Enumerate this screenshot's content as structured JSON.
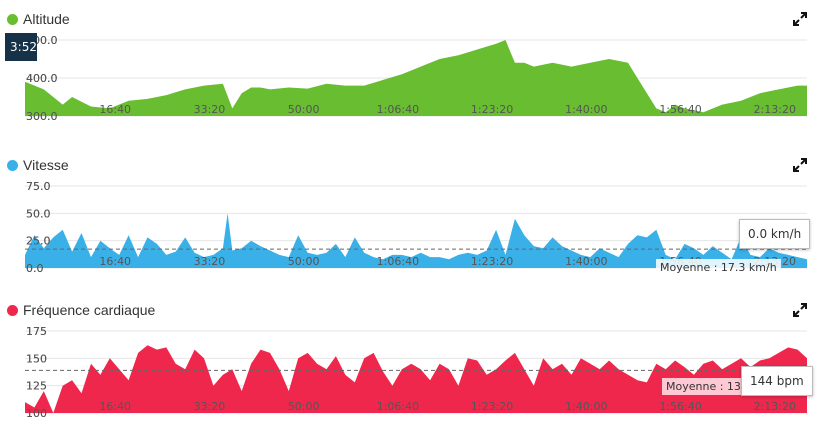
{
  "chart_data": [
    {
      "type": "area",
      "title": "Altitude",
      "color": "#69bd31",
      "ylim": [
        300,
        500
      ],
      "yticks": [
        "500.0",
        "400.0",
        "300.0"
      ],
      "ytick_values": [
        500,
        400,
        300
      ],
      "xticks": [
        "16:40",
        "33:20",
        "50:00",
        "1:06:40",
        "1:23:20",
        "1:40:00",
        "1:56:40",
        "2:13:20"
      ],
      "xtick_values": [
        1000,
        2000,
        3000,
        4000,
        5000,
        6000,
        7000,
        8000
      ],
      "xlim": [
        0,
        8300
      ],
      "x": [
        0,
        200,
        400,
        500,
        700,
        900,
        1100,
        1300,
        1500,
        1700,
        1900,
        2100,
        2200,
        2300,
        2400,
        2500,
        2600,
        2800,
        3000,
        3200,
        3400,
        3600,
        3800,
        4000,
        4200,
        4400,
        4600,
        4800,
        5000,
        5100,
        5200,
        5300,
        5400,
        5600,
        5800,
        6000,
        6200,
        6400,
        6500,
        6700,
        6800,
        6900,
        7000,
        7200,
        7400,
        7600,
        7800,
        8000,
        8200,
        8300
      ],
      "values": [
        390,
        370,
        330,
        350,
        325,
        320,
        340,
        345,
        355,
        370,
        380,
        385,
        320,
        360,
        375,
        375,
        370,
        375,
        372,
        385,
        380,
        380,
        395,
        410,
        430,
        450,
        460,
        475,
        490,
        500,
        440,
        440,
        430,
        440,
        430,
        440,
        450,
        440,
        400,
        320,
        310,
        330,
        320,
        310,
        330,
        340,
        360,
        370,
        380,
        380
      ],
      "time_badge": "3:52"
    },
    {
      "type": "area",
      "title": "Vitesse",
      "color": "#3ab0e8",
      "ylim": [
        0,
        75
      ],
      "yticks": [
        "75.0",
        "50.0",
        "25.0",
        "0.0"
      ],
      "ytick_values": [
        75,
        50,
        25,
        0
      ],
      "xticks": [
        "16:40",
        "33:20",
        "50:00",
        "1:06:40",
        "1:23:20",
        "1:40:00",
        "1:56:40",
        "2:13:20"
      ],
      "xtick_values": [
        1000,
        2000,
        3000,
        4000,
        5000,
        6000,
        7000,
        8000
      ],
      "xlim": [
        0,
        8300
      ],
      "x": [
        0,
        100,
        200,
        300,
        400,
        500,
        600,
        700,
        800,
        900,
        1000,
        1100,
        1200,
        1300,
        1400,
        1500,
        1600,
        1700,
        1800,
        1900,
        2000,
        2100,
        2150,
        2200,
        2300,
        2400,
        2500,
        2600,
        2700,
        2800,
        2900,
        3000,
        3100,
        3200,
        3300,
        3400,
        3500,
        3600,
        3700,
        3800,
        3900,
        4000,
        4100,
        4200,
        4300,
        4400,
        4500,
        4600,
        4700,
        4800,
        4900,
        5000,
        5100,
        5200,
        5300,
        5400,
        5500,
        5600,
        5700,
        5800,
        5900,
        6000,
        6100,
        6200,
        6300,
        6400,
        6500,
        6600,
        6700,
        6800,
        6900,
        7000,
        7100,
        7200,
        7300,
        7400,
        7500,
        7600,
        7700,
        7800,
        7900,
        8000,
        8100,
        8200,
        8300
      ],
      "values": [
        12,
        30,
        18,
        28,
        35,
        15,
        32,
        10,
        25,
        18,
        12,
        30,
        10,
        28,
        22,
        12,
        15,
        28,
        14,
        10,
        12,
        18,
        50,
        16,
        18,
        25,
        20,
        16,
        12,
        10,
        30,
        14,
        12,
        14,
        22,
        10,
        28,
        14,
        10,
        8,
        12,
        12,
        10,
        14,
        10,
        10,
        8,
        12,
        14,
        12,
        16,
        35,
        12,
        45,
        30,
        20,
        18,
        28,
        20,
        16,
        12,
        10,
        18,
        14,
        10,
        22,
        30,
        28,
        35,
        12,
        8,
        22,
        18,
        12,
        20,
        14,
        8,
        28,
        12,
        10,
        18,
        14,
        12,
        10,
        8
      ],
      "average_value": 17.3,
      "average_label": "Moyenne : 17.3 km/h",
      "tooltip": "0.0 km/h"
    },
    {
      "type": "area",
      "title": "Fréquence cardiaque",
      "color": "#f0274d",
      "ylim": [
        100,
        175
      ],
      "yticks": [
        "175",
        "150",
        "125",
        "100"
      ],
      "ytick_values": [
        175,
        150,
        125,
        100
      ],
      "xticks": [
        "16:40",
        "33:20",
        "50:00",
        "1:06:40",
        "1:23:20",
        "1:40:00",
        "1:56:40",
        "2:13:20"
      ],
      "xtick_values": [
        1000,
        2000,
        3000,
        4000,
        5000,
        6000,
        7000,
        8000
      ],
      "xlim": [
        0,
        8300
      ],
      "x": [
        0,
        100,
        200,
        300,
        400,
        500,
        600,
        700,
        800,
        900,
        1000,
        1100,
        1200,
        1300,
        1400,
        1500,
        1600,
        1700,
        1800,
        1900,
        2000,
        2100,
        2200,
        2300,
        2400,
        2500,
        2600,
        2700,
        2800,
        2900,
        3000,
        3100,
        3200,
        3300,
        3400,
        3500,
        3600,
        3700,
        3800,
        3900,
        4000,
        4100,
        4200,
        4300,
        4400,
        4500,
        4600,
        4700,
        4800,
        4900,
        5000,
        5100,
        5200,
        5300,
        5400,
        5500,
        5600,
        5700,
        5800,
        5900,
        6000,
        6100,
        6200,
        6300,
        6400,
        6500,
        6600,
        6700,
        6800,
        6900,
        7000,
        7100,
        7200,
        7300,
        7400,
        7500,
        7600,
        7700,
        7800,
        7900,
        8000,
        8100,
        8200,
        8300
      ],
      "values": [
        110,
        105,
        120,
        100,
        125,
        130,
        118,
        145,
        135,
        150,
        140,
        130,
        155,
        162,
        158,
        160,
        145,
        140,
        158,
        150,
        125,
        135,
        140,
        120,
        145,
        158,
        155,
        140,
        120,
        150,
        155,
        145,
        140,
        152,
        135,
        128,
        150,
        155,
        138,
        125,
        140,
        145,
        140,
        130,
        145,
        140,
        125,
        150,
        148,
        135,
        140,
        148,
        155,
        140,
        125,
        150,
        140,
        145,
        135,
        150,
        145,
        140,
        148,
        140,
        135,
        130,
        128,
        145,
        140,
        148,
        142,
        135,
        145,
        148,
        140,
        145,
        150,
        142,
        148,
        150,
        155,
        160,
        158,
        150
      ],
      "average_value": 139,
      "average_label": "Moyenne : 139 bpm",
      "tooltip": "144 bpm"
    }
  ],
  "expand_icon": "expand-icon"
}
